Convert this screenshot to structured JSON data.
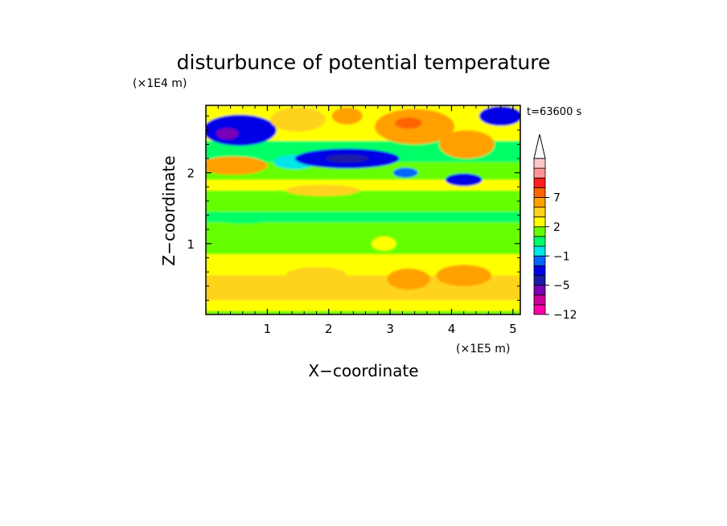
{
  "chart_data": {
    "type": "heatmap",
    "title": "disturbunce of potential temperature",
    "time_label": "t=63600 s",
    "xlabel": "X−coordinate",
    "ylabel": "Z−coordinate",
    "x_scale_label": "(×1E5 m)",
    "y_scale_label": "(×1E4 m)",
    "xlim": [
      0,
      5.12
    ],
    "ylim": [
      0,
      2.95
    ],
    "x_ticks": [
      {
        "value": 1,
        "label": "1"
      },
      {
        "value": 2,
        "label": "2"
      },
      {
        "value": 3,
        "label": "3"
      },
      {
        "value": 4,
        "label": "4"
      },
      {
        "value": 5,
        "label": "5"
      }
    ],
    "y_ticks": [
      {
        "value": 1,
        "label": "1"
      },
      {
        "value": 2,
        "label": "2"
      }
    ],
    "colorbar": {
      "levels": [
        -12,
        -9,
        -7,
        -5,
        -3,
        -2,
        -1,
        0,
        1,
        2,
        3,
        5,
        7,
        9,
        12
      ],
      "colors": [
        "#ff00a8",
        "#cc0099",
        "#7a00b8",
        "#1a1aa8",
        "#0000e6",
        "#0066ff",
        "#00e6e6",
        "#00ff66",
        "#66ff00",
        "#ffff00",
        "#ffd21e",
        "#ffa000",
        "#ff6400",
        "#ff1e1e",
        "#ff9696",
        "#ffc8c8"
      ],
      "labels": [
        {
          "level": -12,
          "text": "−12"
        },
        {
          "level": -5,
          "text": "−5"
        },
        {
          "level": -1,
          "text": "−1"
        },
        {
          "level": 2,
          "text": "2"
        },
        {
          "level": 7,
          "text": "7"
        }
      ],
      "extend": "max"
    },
    "bands": [
      {
        "z0": 0.0,
        "z1": 0.05,
        "value": 0.5
      },
      {
        "z0": 0.05,
        "z1": 0.2,
        "value": 1.5
      },
      {
        "z0": 0.2,
        "z1": 0.55,
        "value": 2.5
      },
      {
        "z0": 0.55,
        "z1": 0.85,
        "value": 1.5
      },
      {
        "z0": 0.85,
        "z1": 1.1,
        "value": 0.5
      },
      {
        "z0": 1.1,
        "z1": 1.3,
        "value": 0.8
      },
      {
        "z0": 1.3,
        "z1": 1.45,
        "value": -0.5
      },
      {
        "z0": 1.45,
        "z1": 1.75,
        "value": 0.6
      },
      {
        "z0": 1.75,
        "z1": 1.9,
        "value": 1.5
      },
      {
        "z0": 1.9,
        "z1": 2.15,
        "value": 0.4
      },
      {
        "z0": 2.15,
        "z1": 2.45,
        "value": -0.6
      },
      {
        "z0": 2.45,
        "z1": 2.95,
        "value": 1.5
      }
    ],
    "blobs": [
      {
        "x": 0.55,
        "z": 2.6,
        "rx": 0.6,
        "rz": 0.22,
        "value": -4
      },
      {
        "x": 0.35,
        "z": 2.55,
        "rx": 0.18,
        "rz": 0.08,
        "value": -8
      },
      {
        "x": 0.45,
        "z": 2.1,
        "rx": 0.55,
        "rz": 0.13,
        "value": 4
      },
      {
        "x": 1.45,
        "z": 2.15,
        "rx": 0.35,
        "rz": 0.1,
        "value": -2
      },
      {
        "x": 2.3,
        "z": 2.2,
        "rx": 0.85,
        "rz": 0.14,
        "value": -4
      },
      {
        "x": 2.3,
        "z": 2.2,
        "rx": 0.35,
        "rz": 0.06,
        "value": -6
      },
      {
        "x": 1.5,
        "z": 2.75,
        "rx": 0.45,
        "rz": 0.17,
        "value": 2.5
      },
      {
        "x": 2.3,
        "z": 2.8,
        "rx": 0.25,
        "rz": 0.12,
        "value": 4
      },
      {
        "x": 3.4,
        "z": 2.65,
        "rx": 0.65,
        "rz": 0.25,
        "value": 4
      },
      {
        "x": 3.3,
        "z": 2.7,
        "rx": 0.22,
        "rz": 0.08,
        "value": 6
      },
      {
        "x": 4.25,
        "z": 2.4,
        "rx": 0.45,
        "rz": 0.2,
        "value": 4
      },
      {
        "x": 4.8,
        "z": 2.8,
        "rx": 0.35,
        "rz": 0.14,
        "value": -4
      },
      {
        "x": 4.2,
        "z": 1.9,
        "rx": 0.3,
        "rz": 0.09,
        "value": -4
      },
      {
        "x": 1.9,
        "z": 1.75,
        "rx": 0.6,
        "rz": 0.08,
        "value": 2.5
      },
      {
        "x": 3.25,
        "z": 2.0,
        "rx": 0.2,
        "rz": 0.07,
        "value": -3
      },
      {
        "x": 4.2,
        "z": 0.55,
        "rx": 0.45,
        "rz": 0.15,
        "value": 4
      },
      {
        "x": 3.3,
        "z": 0.5,
        "rx": 0.35,
        "rz": 0.15,
        "value": 3.5
      },
      {
        "x": 1.8,
        "z": 0.55,
        "rx": 0.5,
        "rz": 0.12,
        "value": 2.5
      },
      {
        "x": 0.6,
        "z": 1.35,
        "rx": 0.45,
        "rz": 0.07,
        "value": -0.5
      },
      {
        "x": 4.7,
        "z": 1.2,
        "rx": 0.35,
        "rz": 0.07,
        "value": 0.5
      },
      {
        "x": 2.9,
        "z": 1.0,
        "rx": 0.2,
        "rz": 0.1,
        "value": 1.5
      }
    ]
  }
}
